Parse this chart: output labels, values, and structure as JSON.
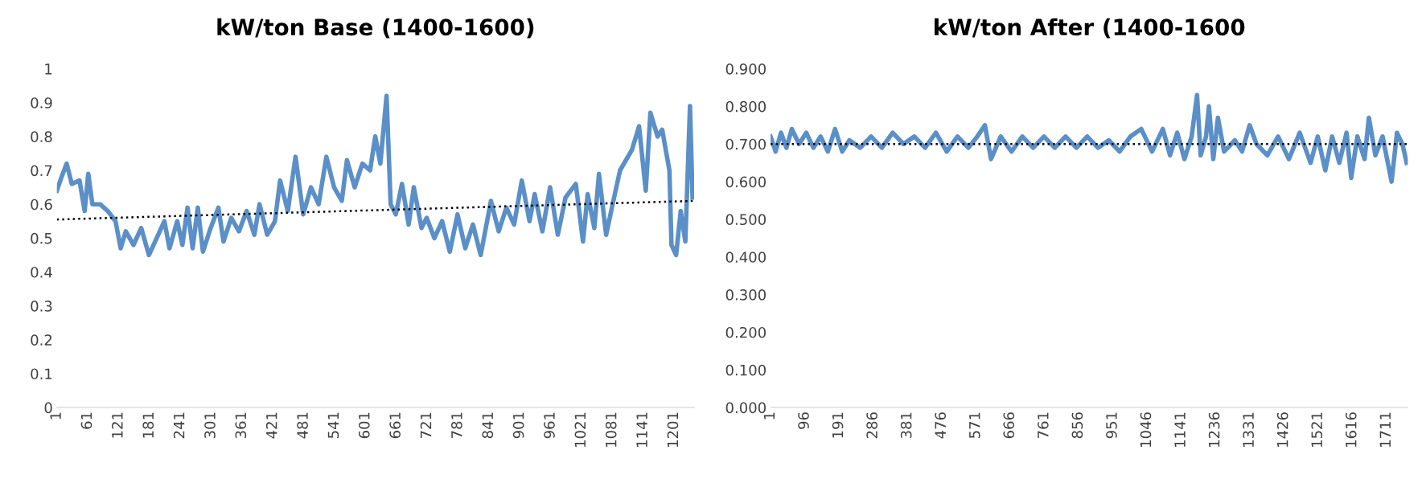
{
  "chart_data": [
    {
      "type": "line",
      "title": "kW/ton Base (1400-1600)",
      "xlim": [
        1,
        1240
      ],
      "xticks": [
        1,
        61,
        121,
        181,
        241,
        301,
        361,
        421,
        481,
        541,
        601,
        661,
        721,
        781,
        841,
        901,
        961,
        1021,
        1081,
        1141,
        1201
      ],
      "ylim": [
        0,
        1
      ],
      "yticks": [
        0,
        0.1,
        0.2,
        0.3,
        0.4,
        0.5,
        0.6,
        0.7,
        0.8,
        0.9,
        1
      ],
      "grid": false,
      "legend": false,
      "series": [
        {
          "color": "#5b8fc7",
          "line_style": "solid",
          "x": [
            1,
            10,
            20,
            30,
            45,
            55,
            62,
            70,
            85,
            100,
            115,
            125,
            135,
            150,
            165,
            180,
            195,
            210,
            220,
            235,
            245,
            255,
            265,
            275,
            285,
            300,
            315,
            325,
            340,
            355,
            370,
            385,
            395,
            410,
            425,
            435,
            450,
            465,
            480,
            495,
            510,
            525,
            540,
            555,
            565,
            580,
            595,
            610,
            620,
            630,
            642,
            650,
            660,
            672,
            685,
            695,
            710,
            720,
            735,
            750,
            765,
            780,
            795,
            810,
            825,
            835,
            845,
            860,
            875,
            890,
            905,
            920,
            930,
            945,
            960,
            975,
            990,
            1010,
            1024,
            1033,
            1046,
            1055,
            1069,
            1083,
            1096,
            1119,
            1133,
            1146,
            1155,
            1169,
            1178,
            1192,
            1196,
            1205,
            1214,
            1223,
            1232,
            1237
          ],
          "values": [
            0.64,
            0.68,
            0.72,
            0.66,
            0.67,
            0.58,
            0.69,
            0.6,
            0.6,
            0.58,
            0.55,
            0.47,
            0.52,
            0.48,
            0.53,
            0.45,
            0.5,
            0.55,
            0.47,
            0.55,
            0.48,
            0.59,
            0.47,
            0.59,
            0.46,
            0.53,
            0.59,
            0.49,
            0.56,
            0.52,
            0.58,
            0.51,
            0.6,
            0.51,
            0.55,
            0.67,
            0.58,
            0.74,
            0.57,
            0.65,
            0.6,
            0.74,
            0.65,
            0.61,
            0.73,
            0.65,
            0.72,
            0.7,
            0.8,
            0.72,
            0.92,
            0.6,
            0.57,
            0.66,
            0.54,
            0.65,
            0.53,
            0.56,
            0.5,
            0.55,
            0.46,
            0.57,
            0.47,
            0.54,
            0.45,
            0.53,
            0.61,
            0.52,
            0.59,
            0.54,
            0.67,
            0.55,
            0.63,
            0.52,
            0.65,
            0.51,
            0.62,
            0.66,
            0.49,
            0.63,
            0.53,
            0.69,
            0.51,
            0.61,
            0.7,
            0.76,
            0.83,
            0.64,
            0.87,
            0.8,
            0.82,
            0.7,
            0.48,
            0.45,
            0.58,
            0.49,
            0.89,
            0.62
          ]
        },
        {
          "type": "line",
          "color": "#000000",
          "line_style": "dotted",
          "x": [
            1,
            1240
          ],
          "values": [
            0.555,
            0.61
          ]
        }
      ]
    },
    {
      "type": "line",
      "title": "kW/ton After (1400-1600",
      "xlim": [
        1,
        1770
      ],
      "xticks": [
        1,
        96,
        191,
        286,
        381,
        476,
        571,
        666,
        761,
        856,
        951,
        1046,
        1141,
        1236,
        1331,
        1426,
        1521,
        1616,
        1711
      ],
      "ylim": [
        0,
        0.9
      ],
      "yticks": [
        {
          "value": 0,
          "label": "0.000"
        },
        {
          "value": 0.1,
          "label": "0.100"
        },
        {
          "value": 0.2,
          "label": "0.200"
        },
        {
          "value": 0.3,
          "label": "0.300"
        },
        {
          "value": 0.4,
          "label": "0.400"
        },
        {
          "value": 0.5,
          "label": "0.500"
        },
        {
          "value": 0.6,
          "label": "0.600"
        },
        {
          "value": 0.7,
          "label": "0.700"
        },
        {
          "value": 0.8,
          "label": "0.800"
        },
        {
          "value": 0.9,
          "label": "0.900"
        }
      ],
      "grid": false,
      "legend": false,
      "series": [
        {
          "color": "#5b8fc7",
          "line_style": "solid",
          "x": [
            1,
            15,
            30,
            45,
            60,
            80,
            100,
            120,
            140,
            160,
            180,
            200,
            220,
            250,
            280,
            310,
            340,
            370,
            400,
            430,
            460,
            490,
            520,
            550,
            575,
            596,
            613,
            640,
            670,
            700,
            730,
            760,
            790,
            820,
            850,
            880,
            910,
            940,
            970,
            1000,
            1030,
            1060,
            1090,
            1110,
            1130,
            1150,
            1170,
            1185,
            1195,
            1210,
            1218,
            1230,
            1243,
            1260,
            1290,
            1310,
            1331,
            1350,
            1380,
            1410,
            1440,
            1470,
            1500,
            1520,
            1541,
            1560,
            1580,
            1600,
            1613,
            1630,
            1650,
            1662,
            1680,
            1700,
            1725,
            1740,
            1755,
            1767
          ],
          "values": [
            0.72,
            0.68,
            0.73,
            0.69,
            0.74,
            0.7,
            0.73,
            0.69,
            0.72,
            0.68,
            0.74,
            0.68,
            0.71,
            0.69,
            0.72,
            0.69,
            0.73,
            0.7,
            0.72,
            0.69,
            0.73,
            0.68,
            0.72,
            0.69,
            0.72,
            0.75,
            0.66,
            0.72,
            0.68,
            0.72,
            0.69,
            0.72,
            0.69,
            0.72,
            0.69,
            0.72,
            0.69,
            0.71,
            0.68,
            0.72,
            0.74,
            0.68,
            0.74,
            0.67,
            0.73,
            0.66,
            0.72,
            0.83,
            0.67,
            0.72,
            0.8,
            0.66,
            0.77,
            0.68,
            0.71,
            0.68,
            0.75,
            0.7,
            0.67,
            0.72,
            0.66,
            0.73,
            0.65,
            0.72,
            0.63,
            0.72,
            0.65,
            0.73,
            0.61,
            0.72,
            0.66,
            0.77,
            0.67,
            0.72,
            0.6,
            0.73,
            0.7,
            0.65
          ]
        },
        {
          "type": "line",
          "color": "#000000",
          "line_style": "dotted",
          "x": [
            1,
            1770
          ],
          "values": [
            0.7,
            0.7
          ]
        }
      ]
    }
  ]
}
